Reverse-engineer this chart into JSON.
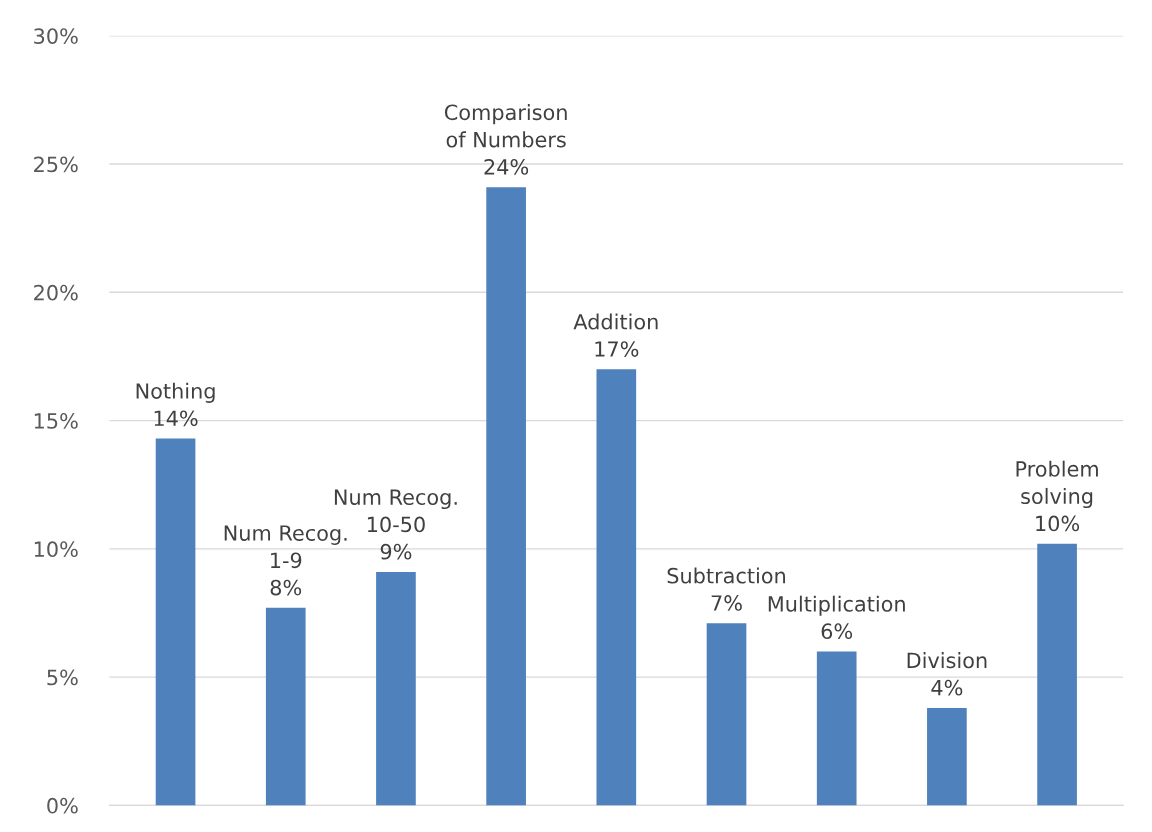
{
  "chart_data": {
    "type": "bar",
    "categories": [
      "Nothing",
      "Num Recog.\n1-9",
      "Num Recog.\n10-50",
      "Comparison\nof Numbers",
      "Addition",
      "Subtraction",
      "Multiplication",
      "Division",
      "Problem\nsolving"
    ],
    "series": [
      {
        "color": "#4f81bd",
        "values": [
          14.3,
          7.7,
          9.1,
          24.1,
          17.0,
          7.1,
          6.0,
          3.8,
          10.2
        ],
        "value_labels": [
          "14%",
          "8%",
          "9%",
          "24%",
          "17%",
          "7%",
          "6%",
          "4%",
          "10%"
        ]
      }
    ],
    "ylim": [
      0,
      30
    ],
    "yticks": [
      {
        "value": 0,
        "label": "0%"
      },
      {
        "value": 5,
        "label": "5%"
      },
      {
        "value": 10,
        "label": "10%"
      },
      {
        "value": 15,
        "label": "15%"
      },
      {
        "value": 20,
        "label": "20%"
      },
      {
        "value": 25,
        "label": "25%"
      },
      {
        "value": 30,
        "label": "30%"
      }
    ],
    "grid": "y",
    "tick_labels": "y",
    "legend": false
  }
}
